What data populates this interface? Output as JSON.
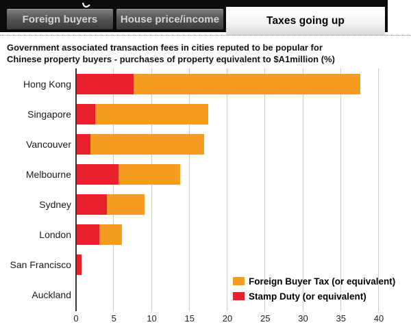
{
  "header": {
    "tabs": [
      {
        "label": "Foreign buyers",
        "active": false
      },
      {
        "label": "House price/income",
        "active": false
      },
      {
        "label": "Taxes going up",
        "active": true
      }
    ]
  },
  "title": {
    "line1": "Government associated transaction fees in cities reputed to be popular for",
    "line2": "Chinese property buyers - purchases of property equivalent to $A1million (%)"
  },
  "legend": [
    {
      "label": "Foreign Buyer Tax (or equivalent)",
      "color": "#f59d20"
    },
    {
      "label": "Stamp Duty (or equivalent)",
      "color": "#e8212d"
    }
  ],
  "chart_data": {
    "type": "bar",
    "orientation": "horizontal",
    "stacked": true,
    "title": "Government associated transaction fees in cities reputed to be popular for Chinese property buyers - purchases of property equivalent to $A1million (%)",
    "categories": [
      "Hong Kong",
      "Singapore",
      "Vancouver",
      "Melbourne",
      "Sydney",
      "London",
      "San Francisco",
      "Auckland"
    ],
    "series": [
      {
        "name": "Stamp Duty (or equivalent)",
        "color": "#e8212d",
        "values": [
          7.5,
          2.4,
          1.8,
          5.5,
          4.0,
          3.0,
          0.6,
          0
        ]
      },
      {
        "name": "Foreign Buyer Tax (or equivalent)",
        "color": "#f59d20",
        "values": [
          30.0,
          15.0,
          15.0,
          8.2,
          5.0,
          3.0,
          0,
          0
        ]
      }
    ],
    "totals": [
      37.5,
      17.4,
      16.8,
      13.7,
      9.0,
      6.0,
      0.6,
      0
    ],
    "xlim": [
      0,
      40
    ],
    "xticks": [
      0,
      5,
      10,
      15,
      20,
      25,
      30,
      35,
      40
    ],
    "grid": true,
    "legend_position": "inside-bottom-right"
  },
  "colors": {
    "bar_red": "#e8212d",
    "bar_orange": "#f59d20",
    "header_bg": "#0b0b0b",
    "active_tab_text": "#000000",
    "inactive_tab_text": "#d4d4d4",
    "axis_line": "#333333",
    "gridline": "#cccccc"
  }
}
